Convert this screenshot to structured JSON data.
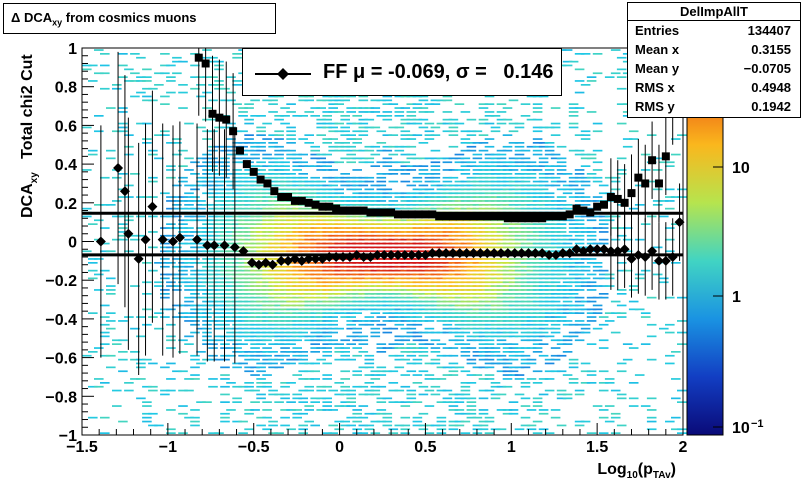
{
  "title": {
    "main": "Δ DCA",
    "sub": "xy",
    "rest": " from cosmics muons"
  },
  "stats": {
    "name": "DelImpAllT",
    "rows": [
      {
        "label": "Entries",
        "value": "134407"
      },
      {
        "label": "Mean x",
        "value": "0.3155"
      },
      {
        "label": "Mean y",
        "value": "−0.0705"
      },
      {
        "label": "RMS x",
        "value": "0.4948"
      },
      {
        "label": "RMS y",
        "value": "0.1942"
      }
    ]
  },
  "legend": {
    "text": "FF μ = -0.069, σ =   0.146"
  },
  "chart_data": {
    "type": "heatmap",
    "xlabel": {
      "main": "Log",
      "sub": "10",
      "paren": "(p",
      "psub": "TAv",
      "close": ")"
    },
    "ylabel": {
      "main": "DCA",
      "sub": "xy",
      "rest": "   Total chi2 Cut"
    },
    "xlim": [
      -1.5,
      2.0
    ],
    "ylim": [
      -1.0,
      1.0
    ],
    "xticks": [
      "−1.5",
      "−1",
      "−0.5",
      "0",
      "0.5",
      "1",
      "1.5",
      "2"
    ],
    "yticks": [
      "−1",
      "−0.8",
      "−0.6",
      "−0.4",
      "−0.2",
      "0",
      "0.2",
      "0.4",
      "0.6",
      "0.8",
      "1"
    ],
    "colorbar_ticks": [
      "10",
      "1",
      "10−1"
    ],
    "hlines": [
      0.146,
      -0.069
    ],
    "mean_series": {
      "name": "μ",
      "marker": "diamond",
      "x": [
        -1.39,
        -1.23,
        -1.13,
        -1.03,
        -0.93,
        -0.83,
        -0.77,
        -0.67,
        -0.61,
        -0.56,
        -0.51,
        -0.47,
        -0.43,
        -0.39,
        -0.34,
        -0.3,
        -0.26,
        -0.22,
        -0.18,
        -0.14,
        -0.1,
        -0.06,
        -0.02,
        0.02,
        0.06,
        0.1,
        0.14,
        0.18,
        0.22,
        0.26,
        0.3,
        0.34,
        0.38,
        0.42,
        0.46,
        0.5,
        0.54,
        0.58,
        0.62,
        0.66,
        0.7,
        0.74,
        0.78,
        0.82,
        0.86,
        0.9,
        0.94,
        0.98,
        1.02,
        1.06,
        1.1,
        1.14,
        1.18,
        1.22,
        1.26,
        1.3,
        1.34,
        1.38,
        1.42,
        1.46,
        1.5,
        1.54,
        1.58,
        1.62,
        1.66,
        1.7,
        1.74,
        1.78,
        1.82,
        1.86,
        1.9,
        1.94,
        1.98
      ],
      "y": [
        0.0,
        0.04,
        0.01,
        0.01,
        0.02,
        0.01,
        -0.02,
        -0.02,
        -0.03,
        -0.05,
        -0.11,
        -0.12,
        -0.11,
        -0.12,
        -0.1,
        -0.1,
        -0.09,
        -0.1,
        -0.09,
        -0.09,
        -0.09,
        -0.08,
        -0.08,
        -0.08,
        -0.08,
        -0.07,
        -0.08,
        -0.08,
        -0.07,
        -0.07,
        -0.07,
        -0.07,
        -0.07,
        -0.07,
        -0.07,
        -0.07,
        -0.06,
        -0.06,
        -0.06,
        -0.06,
        -0.06,
        -0.06,
        -0.06,
        -0.06,
        -0.06,
        -0.06,
        -0.06,
        -0.06,
        -0.06,
        -0.06,
        -0.06,
        -0.06,
        -0.06,
        -0.07,
        -0.07,
        -0.06,
        -0.06,
        -0.04,
        -0.05,
        -0.04,
        -0.04,
        -0.04,
        -0.05,
        -0.05,
        -0.04,
        -0.09,
        -0.07,
        -0.08,
        -0.05,
        -0.1,
        -0.1,
        -0.08,
        0.1
      ],
      "extra_points": [
        {
          "x": -1.29,
          "y": 0.38
        },
        {
          "x": -1.25,
          "y": 0.26
        },
        {
          "x": -1.17,
          "y": -0.09
        },
        {
          "x": -1.09,
          "y": 0.18
        },
        {
          "x": -0.97,
          "y": 0.0
        },
        {
          "x": -0.73,
          "y": -0.02
        }
      ]
    },
    "sigma_series": {
      "name": "σ",
      "marker": "square",
      "x": [
        -0.82,
        -0.78,
        -0.74,
        -0.7,
        -0.66,
        -0.62,
        -0.58,
        -0.54,
        -0.5,
        -0.46,
        -0.42,
        -0.38,
        -0.34,
        -0.3,
        -0.26,
        -0.22,
        -0.18,
        -0.14,
        -0.1,
        -0.06,
        -0.02,
        0.02,
        0.06,
        0.1,
        0.14,
        0.18,
        0.22,
        0.26,
        0.3,
        0.34,
        0.38,
        0.42,
        0.46,
        0.5,
        0.54,
        0.58,
        0.62,
        0.66,
        0.7,
        0.74,
        0.78,
        0.82,
        0.86,
        0.9,
        0.94,
        0.98,
        1.02,
        1.06,
        1.1,
        1.14,
        1.18,
        1.22,
        1.26,
        1.3,
        1.34,
        1.38,
        1.42,
        1.46,
        1.5,
        1.54,
        1.58,
        1.62,
        1.66,
        1.7,
        1.74,
        1.78,
        1.82,
        1.86,
        1.9,
        1.94
      ],
      "y": [
        0.95,
        0.92,
        0.66,
        0.64,
        0.63,
        0.57,
        0.47,
        0.4,
        0.36,
        0.32,
        0.3,
        0.26,
        0.23,
        0.23,
        0.21,
        0.21,
        0.2,
        0.19,
        0.18,
        0.18,
        0.17,
        0.16,
        0.16,
        0.16,
        0.16,
        0.15,
        0.15,
        0.15,
        0.15,
        0.14,
        0.14,
        0.14,
        0.14,
        0.14,
        0.14,
        0.13,
        0.13,
        0.13,
        0.13,
        0.13,
        0.13,
        0.13,
        0.13,
        0.13,
        0.13,
        0.12,
        0.12,
        0.12,
        0.12,
        0.12,
        0.12,
        0.13,
        0.13,
        0.13,
        0.14,
        0.17,
        0.16,
        0.15,
        0.18,
        0.19,
        0.23,
        0.22,
        0.2,
        0.25,
        0.33,
        0.3,
        0.42,
        0.3,
        0.44,
        0.7
      ]
    },
    "colors": {
      "frame": "#000000",
      "marker": "#000000"
    }
  }
}
